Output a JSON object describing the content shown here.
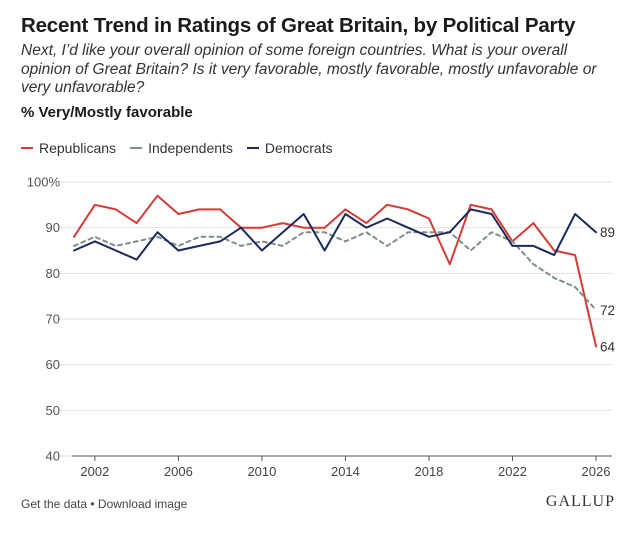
{
  "title": "Recent Trend in Ratings of Great Britain, by Political Party",
  "subtitle": "Next, I’d like your overall opinion of some foreign countries. What is your overall opinion of Great Britain? Is it very favorable, mostly favorable, mostly unfavorable or very unfavorable?",
  "measure_label": "% Very/Mostly favorable",
  "footer": {
    "get_data": "Get the data",
    "separator": " • ",
    "download": "Download image",
    "brand": "GALLUP"
  },
  "colors": {
    "republicans": "#d63a34",
    "independents": "#7f8f86",
    "democrats": "#1c2a5b"
  },
  "chart_data": {
    "type": "line",
    "title": "Recent Trend in Ratings of Great Britain, by Political Party",
    "xlabel": "",
    "ylabel": "% Very/Mostly favorable",
    "xlim": [
      2001,
      2026
    ],
    "ylim": [
      40,
      100
    ],
    "y_ticks": [
      40,
      50,
      60,
      70,
      80,
      90,
      100
    ],
    "y_tick_labels": [
      "40",
      "50",
      "60",
      "70",
      "80",
      "90",
      "100%"
    ],
    "x_ticks": [
      2002,
      2006,
      2010,
      2014,
      2018,
      2022,
      2026
    ],
    "x_tick_labels": [
      "2002",
      "2006",
      "2010",
      "2014",
      "2018",
      "2022",
      "2026"
    ],
    "grid": true,
    "legend": "top-left",
    "x": [
      2001,
      2002,
      2003,
      2004,
      2005,
      2006,
      2007,
      2008,
      2009,
      2010,
      2011,
      2012,
      2013,
      2014,
      2015,
      2016,
      2017,
      2018,
      2019,
      2020,
      2021,
      2022,
      2023,
      2024,
      2025,
      2026
    ],
    "series": [
      {
        "name": "Republicans",
        "key": "republicans",
        "style": "solid",
        "end_label": "64",
        "values": [
          88,
          95,
          94,
          91,
          97,
          93,
          94,
          94,
          90,
          90,
          91,
          90,
          90,
          94,
          91,
          95,
          94,
          92,
          82,
          95,
          94,
          87,
          91,
          85,
          84,
          64
        ]
      },
      {
        "name": "Independents",
        "key": "independents",
        "style": "dashed",
        "end_label": "72",
        "values": [
          86,
          88,
          86,
          87,
          88,
          86,
          88,
          88,
          86,
          87,
          86,
          89,
          89,
          87,
          89,
          86,
          89,
          89,
          89,
          85,
          89,
          87,
          82,
          79,
          77,
          72
        ]
      },
      {
        "name": "Democrats",
        "key": "democrats",
        "style": "solid",
        "end_label": "89",
        "values": [
          85,
          87,
          85,
          83,
          89,
          85,
          86,
          87,
          90,
          85,
          89,
          93,
          85,
          93,
          90,
          92,
          90,
          88,
          89,
          94,
          93,
          86,
          86,
          84,
          93,
          89
        ]
      }
    ]
  }
}
